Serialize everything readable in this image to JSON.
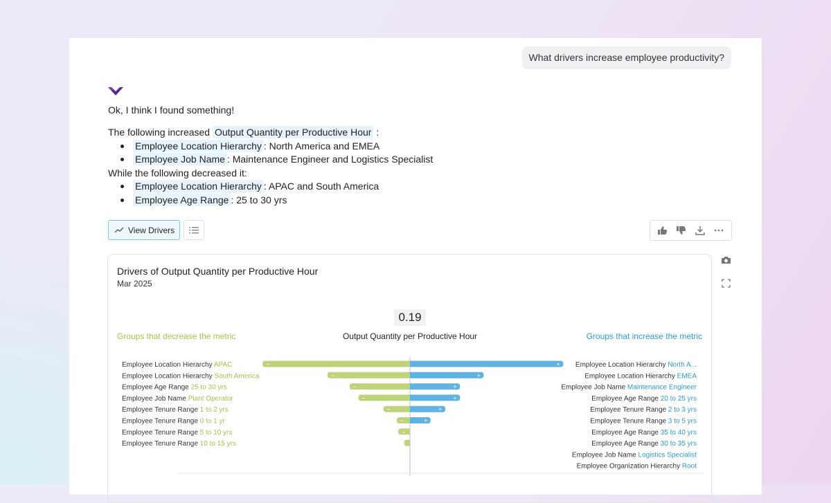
{
  "conversation": {
    "question": "What drivers increase employee productivity?",
    "reply": "Ok, I think I found something!",
    "increase_intro": "The following increased",
    "metric_name": "Output Quantity per Productive Hour",
    "colon": ":",
    "decrease_intro": "While the following decreased it:",
    "increased": [
      {
        "field": "Employee Location Hierarchy",
        "value": ": North America and EMEA"
      },
      {
        "field": "Employee Job Name",
        "value": ": Maintenance Engineer and Logistics Specialist"
      }
    ],
    "decreased": [
      {
        "field": "Employee Location Hierarchy",
        "value": ": APAC and South America"
      },
      {
        "field": "Employee Age Range",
        "value": ": 25 to 30 yrs"
      }
    ]
  },
  "toolbar": {
    "view_drivers_label": "View Drivers",
    "list_icon": "list-icon",
    "actions": [
      "thumbs-up-icon",
      "thumbs-down-icon",
      "download-icon",
      "more-icon"
    ],
    "side_icons": [
      "camera-icon",
      "expand-icon"
    ]
  },
  "colors": {
    "decrease": "#bfd37a",
    "increase": "#5fb2e2",
    "decrease_text": "#a6c24a",
    "increase_text": "#2e9bd2"
  },
  "chart_data": {
    "type": "bar",
    "title": "Drivers of Output Quantity per Productive Hour",
    "subtitle": "Mar 2025",
    "center_value": "0.19",
    "center_label": "Output Quantity per Productive Hour",
    "decrease_label": "Groups that decrease the metric",
    "increase_label": "Groups that increase the metric",
    "decrease": [
      {
        "field": "Employee Location Hierarchy",
        "group": "APAC",
        "value": -1.0,
        "marker": "−"
      },
      {
        "field": "Employee Location Hierarchy",
        "group": "South America",
        "value": -0.56,
        "marker": "−"
      },
      {
        "field": "Employee Age Range",
        "group": "25 to 30 yrs",
        "value": -0.41,
        "marker": "−"
      },
      {
        "field": "Employee Job Name",
        "group": "Plant Operator",
        "value": -0.35,
        "marker": "−"
      },
      {
        "field": "Employee Tenure Range",
        "group": "1 to 2 yrs",
        "value": -0.18,
        "marker": "−"
      },
      {
        "field": "Employee Tenure Range",
        "group": "0 to 1 yr",
        "value": -0.09,
        "marker": "−"
      },
      {
        "field": "Employee Tenure Range",
        "group": "5 to 10 yrs",
        "value": -0.08,
        "marker": "−"
      },
      {
        "field": "Employee Tenure Range",
        "group": "10 to 15 yrs",
        "value": -0.04,
        "marker": ""
      }
    ],
    "increase": [
      {
        "field": "Employee Location Hierarchy",
        "group": "North A...",
        "value": 1.04,
        "marker": "+"
      },
      {
        "field": "Employee Location Hierarchy",
        "group": "EMEA",
        "value": 0.5,
        "marker": "+"
      },
      {
        "field": "Employee Job Name",
        "group": "Maintenance Engineer",
        "value": 0.34,
        "marker": "+"
      },
      {
        "field": "Employee Age Range",
        "group": "20 to 25 yrs",
        "value": 0.34,
        "marker": "+"
      },
      {
        "field": "Employee Tenure Range",
        "group": "2 to 3 yrs",
        "value": 0.24,
        "marker": "+"
      },
      {
        "field": "Employee Tenure Range",
        "group": "3 to 5 yrs",
        "value": 0.14,
        "marker": "+"
      },
      {
        "field": "Employee Age Range",
        "group": "35 to 40 yrs",
        "value": 0,
        "marker": ""
      },
      {
        "field": "Employee Age Range",
        "group": "30 to 35 yrs",
        "value": 0,
        "marker": ""
      },
      {
        "field": "Employee Job Name",
        "group": "Logistics Specialist",
        "value": 0,
        "marker": ""
      },
      {
        "field": "Employee Organization Hierarchy",
        "group": "Root",
        "value": 0,
        "marker": ""
      }
    ],
    "xlim": [
      -1.0,
      1.04
    ],
    "grid": false
  }
}
